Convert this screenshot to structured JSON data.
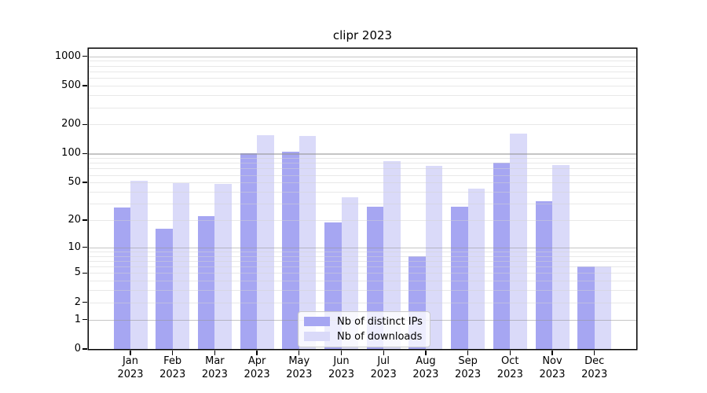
{
  "chart_data": {
    "type": "bar",
    "title": "clipr 2023",
    "year": "2023",
    "categories": [
      "Jan",
      "Feb",
      "Mar",
      "Apr",
      "May",
      "Jun",
      "Jul",
      "Aug",
      "Sep",
      "Oct",
      "Nov",
      "Dec"
    ],
    "series": [
      {
        "name": "Nb of distinct IPs",
        "color": "#a6a6f2",
        "values": [
          27,
          16,
          22,
          100,
          105,
          19,
          28,
          8,
          28,
          80,
          32,
          6
        ]
      },
      {
        "name": "Nb of downloads",
        "color": "#dadaf9",
        "values": [
          52,
          49,
          48,
          155,
          152,
          35,
          84,
          75,
          43,
          160,
          76,
          6
        ]
      }
    ],
    "yscale": "log10(value+1)",
    "yticks": [
      0,
      1,
      2,
      5,
      10,
      20,
      50,
      100,
      200,
      500,
      1000
    ],
    "ylim": [
      0,
      1200
    ],
    "grid": "horizontal major at 1,10,100,1000 and log minors, drawn over bars",
    "legend_position": "inside lower center",
    "bar_color_ips": "#a6a6f2",
    "bar_color_downloads": "#dadaf9"
  }
}
